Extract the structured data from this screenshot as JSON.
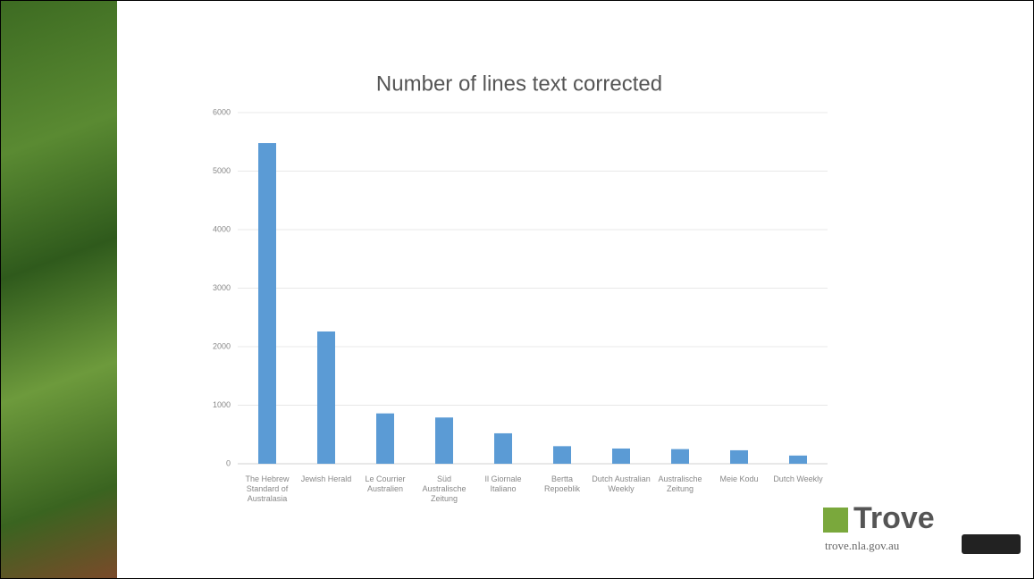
{
  "chart_data": {
    "type": "bar",
    "title": "Number of lines text corrected",
    "categories": [
      "The Hebrew Standard of Australasia",
      "Jewish Herald",
      "Le Courrier Australien",
      "Süd Australische Zeitung",
      "Il Giornale Italiano",
      "Bertta Repoeblik",
      "Dutch Australian Weekly",
      "Australische Zeitung",
      "Meie Kodu",
      "Dutch Weekly"
    ],
    "values": [
      5480,
      2260,
      860,
      790,
      520,
      300,
      260,
      250,
      230,
      140
    ],
    "color": "#5b9bd5",
    "ylim": [
      0,
      6000
    ],
    "yticks": [
      0,
      1000,
      2000,
      3000,
      4000,
      5000,
      6000
    ],
    "grid": true
  },
  "logo": {
    "name": "Trove",
    "url": "trove.nla.gov.au"
  }
}
